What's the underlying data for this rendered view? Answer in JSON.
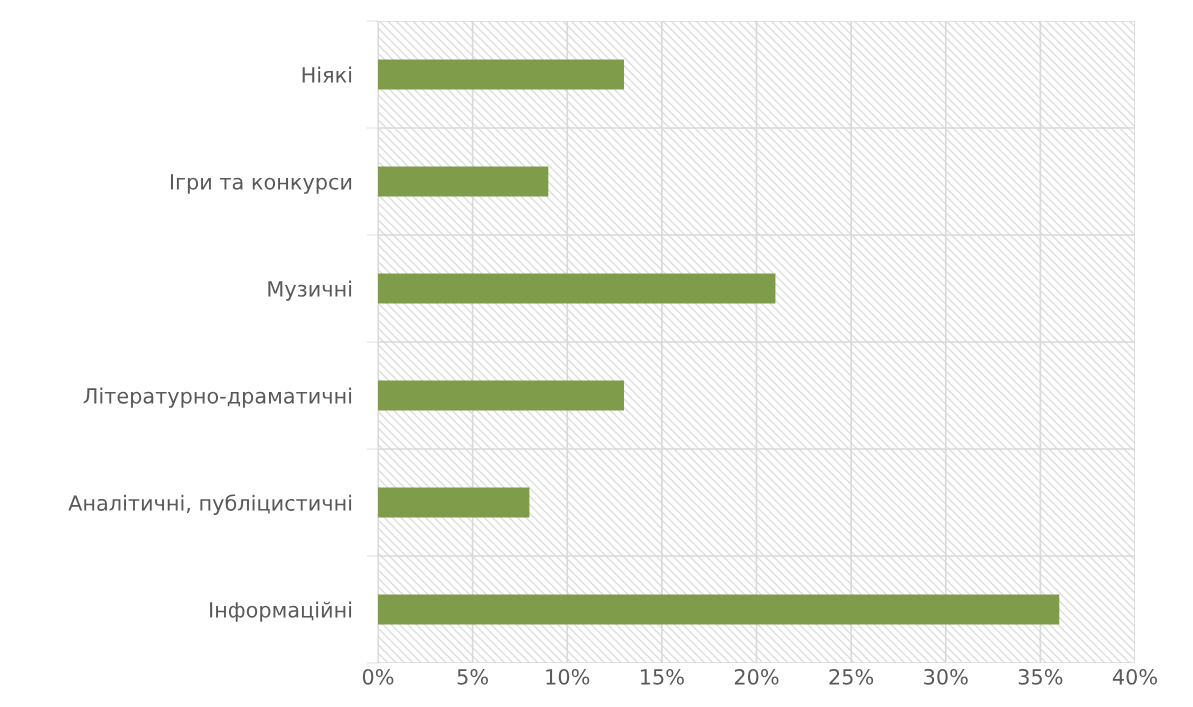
{
  "chart_data": {
    "type": "bar",
    "orientation": "horizontal",
    "categories": [
      "Ніякі",
      "Ігри та конкурси",
      "Музичні",
      "Літературно-драматичні",
      "Аналітичні, публіцистичні",
      "Інформаційні"
    ],
    "series": [
      {
        "color": "#7f9c4a",
        "values": [
          13,
          9,
          21,
          13,
          8,
          36
        ]
      }
    ],
    "xlim": [
      0,
      40
    ],
    "xticks": [
      {
        "value": 0,
        "label": "0%"
      },
      {
        "value": 5,
        "label": "5%"
      },
      {
        "value": 10,
        "label": "10%"
      },
      {
        "value": 15,
        "label": "15%"
      },
      {
        "value": 20,
        "label": "20%"
      },
      {
        "value": 25,
        "label": "25%"
      },
      {
        "value": 30,
        "label": "30%"
      },
      {
        "value": 35,
        "label": "35%"
      },
      {
        "value": 40,
        "label": "40%"
      }
    ],
    "grid": true,
    "legend": false
  }
}
